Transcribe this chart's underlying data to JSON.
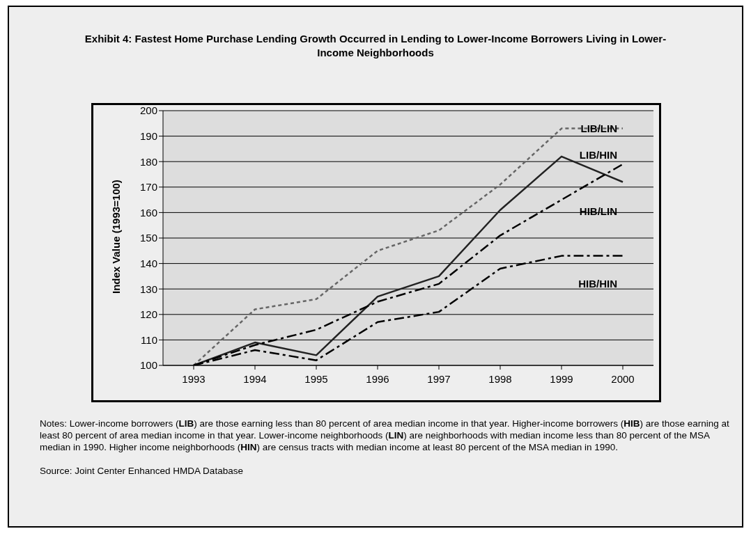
{
  "chart_data": {
    "type": "line",
    "title": "Exhibit 4:  Fastest Home Purchase Lending Growth Occurred in Lending to Lower-Income Borrowers Living in Lower-Income Neighborhoods",
    "ylabel": "Index Value (1993=100)",
    "categories": [
      "1993",
      "1994",
      "1995",
      "1996",
      "1997",
      "1998",
      "1999",
      "2000"
    ],
    "series": [
      {
        "name": "LIB/LIN",
        "color": "#666666",
        "line_style": "dotted",
        "values": [
          100,
          122,
          126,
          145,
          153,
          171,
          193,
          193
        ]
      },
      {
        "name": "LIB/HIN",
        "color": "#222222",
        "line_style": "solid",
        "values": [
          100,
          109,
          104,
          127,
          135,
          161,
          182,
          172
        ]
      },
      {
        "name": "HIB/LIN",
        "color": "#000000",
        "line_style": "dashed",
        "values": [
          100,
          108,
          114,
          125,
          132,
          151,
          165,
          179
        ]
      },
      {
        "name": "HIB/HIN",
        "color": "#000000",
        "line_style": "dashed",
        "values": [
          100,
          106,
          102,
          117,
          121,
          138,
          143,
          143
        ]
      }
    ],
    "ylim": [
      100,
      200
    ],
    "yticks": [
      100,
      110,
      120,
      130,
      140,
      150,
      160,
      170,
      180,
      190,
      200
    ],
    "grid": "y",
    "legend": false,
    "marker": "none",
    "annotations": [
      "Notes:  Lower-income borrowers (LIB) are those earning less than 80 percent of area median income in that year. Higher-income borrowers (HIB) are those earning at least 80 percent of area median income in that year. Lower-income neighborhoods (LIN) are neighborhoods with median income less than 80 percent of the MSA median in 1990. Higher income neighborhoods (HIN) are census tracts with median income at least 80 percent of the MSA median in 1990.",
      "Source: Joint Center Enhanced HMDA Database"
    ]
  }
}
